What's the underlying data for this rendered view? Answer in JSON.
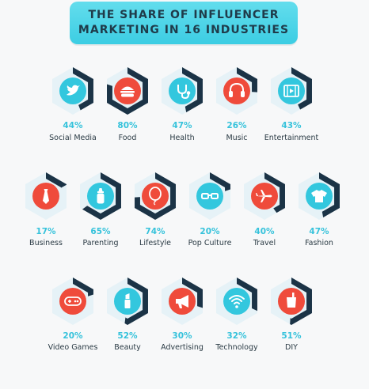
{
  "title_lines": [
    "THE SHARE OF INFLUENCER",
    "MARKETING IN 16 INDUSTRIES"
  ],
  "colors": {
    "ring_dark": "#1b3346",
    "hex_light": "#e6f2f7",
    "teal": "#33c7de",
    "red": "#ef4b3b",
    "pct_text": "#35c2db",
    "label_text": "#2a3a44"
  },
  "chart_data": {
    "type": "pie",
    "title": "THE SHARE OF INFLUENCER MARKETING IN 16 INDUSTRIES",
    "unit": "%",
    "items": [
      {
        "label": "Social Media",
        "value": 44,
        "pct": "44%",
        "icon": "twitter-icon",
        "color": "#33c7de"
      },
      {
        "label": "Food",
        "value": 80,
        "pct": "80%",
        "icon": "burger-icon",
        "color": "#ef4b3b"
      },
      {
        "label": "Health",
        "value": 47,
        "pct": "47%",
        "icon": "stethoscope-icon",
        "color": "#33c7de"
      },
      {
        "label": "Music",
        "value": 26,
        "pct": "26%",
        "icon": "headphones-icon",
        "color": "#ef4b3b"
      },
      {
        "label": "Entertainment",
        "value": 43,
        "pct": "43%",
        "icon": "film-icon",
        "color": "#33c7de"
      },
      {
        "label": "Business",
        "value": 17,
        "pct": "17%",
        "icon": "tie-icon",
        "color": "#ef4b3b"
      },
      {
        "label": "Parenting",
        "value": 65,
        "pct": "65%",
        "icon": "baby-bottle-icon",
        "color": "#33c7de"
      },
      {
        "label": "Lifestyle",
        "value": 74,
        "pct": "74%",
        "icon": "balloon-icon",
        "color": "#ef4b3b"
      },
      {
        "label": "Pop Culture",
        "value": 20,
        "pct": "20%",
        "icon": "glasses-icon",
        "color": "#33c7de"
      },
      {
        "label": "Travel",
        "value": 40,
        "pct": "40%",
        "icon": "airplane-icon",
        "color": "#ef4b3b"
      },
      {
        "label": "Fashion",
        "value": 47,
        "pct": "47%",
        "icon": "tshirt-icon",
        "color": "#33c7de"
      },
      {
        "label": "Video Games",
        "value": 20,
        "pct": "20%",
        "icon": "gamepad-icon",
        "color": "#ef4b3b"
      },
      {
        "label": "Beauty",
        "value": 52,
        "pct": "52%",
        "icon": "lipstick-icon",
        "color": "#33c7de"
      },
      {
        "label": "Advertising",
        "value": 30,
        "pct": "30%",
        "icon": "megaphone-icon",
        "color": "#ef4b3b"
      },
      {
        "label": "Technology",
        "value": 32,
        "pct": "32%",
        "icon": "wifi-icon",
        "color": "#33c7de"
      },
      {
        "label": "DIY",
        "value": 51,
        "pct": "51%",
        "icon": "paint-bucket-icon",
        "color": "#ef4b3b"
      }
    ]
  }
}
